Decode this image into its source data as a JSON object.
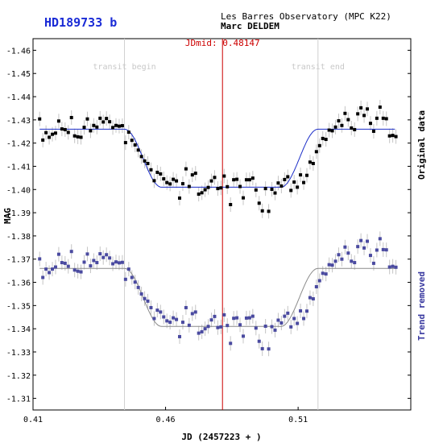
{
  "header": {
    "star_name": "HD189733 b",
    "observatory": "Les Barres Observatory (MPC K22)",
    "observer": "Marc DELDEM"
  },
  "colors": {
    "title": "#1a2bd6",
    "mid_line": "#cc0000",
    "marker_line": "#cfcfcf",
    "original_points": "#000000",
    "original_fit": "#1c2ec8",
    "detrended_points": "#4a4aa0",
    "detrended_fit": "#8a8a8a",
    "errorbar": "#c4c4c4",
    "right_label_bottom": "#3a3aa0"
  },
  "chart_data": {
    "type": "scatter",
    "xlabel": "JD (2457223 + )",
    "ylabel": "MAG",
    "xlim": [
      0.41,
      0.5525
    ],
    "ylim": [
      -1.465,
      -1.305
    ],
    "y_inverted": true,
    "grid": false,
    "x_ticks": [
      0.41,
      0.46,
      0.51
    ],
    "x_tick_labels": [
      "0.41",
      "0.46",
      "0.51"
    ],
    "y_ticks": [
      -1.46,
      -1.45,
      -1.44,
      -1.43,
      -1.42,
      -1.41,
      -1.4,
      -1.39,
      -1.38,
      -1.37,
      -1.36,
      -1.35,
      -1.34,
      -1.33,
      -1.32,
      -1.31
    ],
    "y_tick_labels": [
      "-1.46",
      "-1.45",
      "-1.44",
      "-1.43",
      "-1.42",
      "-1.41",
      "-1.40",
      "-1.39",
      "-1.38",
      "-1.37",
      "-1.36",
      "-1.35",
      "-1.34",
      "-1.33",
      "-1.32",
      "-1.31"
    ],
    "transit_begin": {
      "x": 0.4445,
      "label": "transit begin"
    },
    "transit_end": {
      "x": 0.5175,
      "label": "transit end"
    },
    "mid": {
      "x": 0.48147,
      "label": "JDmid: 0.48147"
    },
    "series": [
      {
        "name": "Original data",
        "baseline": -1.426,
        "depth": 0.025,
        "x": [
          0.4125,
          0.4137,
          0.4149,
          0.4161,
          0.4173,
          0.4185,
          0.4197,
          0.4209,
          0.4221,
          0.4233,
          0.4245,
          0.4257,
          0.4269,
          0.4281,
          0.4293,
          0.4305,
          0.4317,
          0.4329,
          0.4341,
          0.4353,
          0.4365,
          0.4377,
          0.4389,
          0.4401,
          0.4413,
          0.4425,
          0.4437,
          0.4449,
          0.4461,
          0.4473,
          0.4485,
          0.4497,
          0.4509,
          0.4521,
          0.4533,
          0.4545,
          0.4557,
          0.4569,
          0.4581,
          0.4593,
          0.4605,
          0.4617,
          0.4629,
          0.4641,
          0.4653,
          0.4665,
          0.4677,
          0.4689,
          0.4701,
          0.4713,
          0.4725,
          0.4737,
          0.4749,
          0.4761,
          0.4773,
          0.4785,
          0.4797,
          0.4809,
          0.4821,
          0.4833,
          0.4845,
          0.4857,
          0.4869,
          0.4881,
          0.4893,
          0.4905,
          0.4917,
          0.4929,
          0.4941,
          0.4953,
          0.4965,
          0.4977,
          0.4989,
          0.5001,
          0.5013,
          0.5025,
          0.5037,
          0.5049,
          0.5061,
          0.5073,
          0.5085,
          0.5097,
          0.5109,
          0.5121,
          0.5133,
          0.5145,
          0.5157,
          0.5169,
          0.5181,
          0.5193,
          0.5205,
          0.5217,
          0.5229,
          0.5241,
          0.5253,
          0.5265,
          0.5277,
          0.5289,
          0.5301,
          0.5313,
          0.5325,
          0.5337,
          0.5349,
          0.5361,
          0.5373,
          0.5385,
          0.5397,
          0.5409,
          0.5421,
          0.5433,
          0.5445,
          0.5457,
          0.5469
        ],
        "y": [
          -1.4304,
          -1.4213,
          -1.4245,
          -1.4225,
          -1.4238,
          -1.4243,
          -1.4295,
          -1.4261,
          -1.4258,
          -1.4246,
          -1.431,
          -1.4231,
          -1.4227,
          -1.4225,
          -1.4268,
          -1.4304,
          -1.4253,
          -1.4276,
          -1.4269,
          -1.4307,
          -1.4291,
          -1.4306,
          -1.4292,
          -1.4267,
          -1.4276,
          -1.4273,
          -1.4275,
          -1.4202,
          -1.4247,
          -1.4212,
          -1.4192,
          -1.417,
          -1.4142,
          -1.4123,
          -1.4112,
          -1.4085,
          -1.4038,
          -1.4074,
          -1.4067,
          -1.4046,
          -1.403,
          -1.4024,
          -1.4044,
          -1.4037,
          -1.3963,
          -1.4025,
          -1.4089,
          -1.4013,
          -1.4063,
          -1.407,
          -1.398,
          -1.3986,
          -1.3999,
          -1.4009,
          -1.4037,
          -1.4052,
          -1.4004,
          -1.4007,
          -1.4058,
          -1.4012,
          -1.3935,
          -1.4042,
          -1.4044,
          -1.4013,
          -1.3964,
          -1.4042,
          -1.4042,
          -1.4049,
          -1.3998,
          -1.3941,
          -1.3908,
          -1.4004,
          -1.3906,
          -1.4001,
          -1.3985,
          -1.4028,
          -1.4015,
          -1.4043,
          -1.4055,
          -1.3996,
          -1.4032,
          -1.401,
          -1.4063,
          -1.403,
          -1.4061,
          -1.4118,
          -1.4112,
          -1.4163,
          -1.4189,
          -1.422,
          -1.4216,
          -1.4256,
          -1.4253,
          -1.4269,
          -1.4296,
          -1.4276,
          -1.4328,
          -1.4301,
          -1.4265,
          -1.4258,
          -1.4326,
          -1.4352,
          -1.4319,
          -1.4347,
          -1.4285,
          -1.4251,
          -1.4307,
          -1.4355,
          -1.4307,
          -1.4305,
          -1.4231,
          -1.4233,
          -1.4228
        ]
      },
      {
        "name": "Trend removed",
        "baseline": -1.366,
        "depth": 0.025,
        "x": [
          0.4125,
          0.4137,
          0.4149,
          0.4161,
          0.4173,
          0.4185,
          0.4197,
          0.4209,
          0.4221,
          0.4233,
          0.4245,
          0.4257,
          0.4269,
          0.4281,
          0.4293,
          0.4305,
          0.4317,
          0.4329,
          0.4341,
          0.4353,
          0.4365,
          0.4377,
          0.4389,
          0.4401,
          0.4413,
          0.4425,
          0.4437,
          0.4449,
          0.4461,
          0.4473,
          0.4485,
          0.4497,
          0.4509,
          0.4521,
          0.4533,
          0.4545,
          0.4557,
          0.4569,
          0.4581,
          0.4593,
          0.4605,
          0.4617,
          0.4629,
          0.4641,
          0.4653,
          0.4665,
          0.4677,
          0.4689,
          0.4701,
          0.4713,
          0.4725,
          0.4737,
          0.4749,
          0.4761,
          0.4773,
          0.4785,
          0.4797,
          0.4809,
          0.4821,
          0.4833,
          0.4845,
          0.4857,
          0.4869,
          0.4881,
          0.4893,
          0.4905,
          0.4917,
          0.4929,
          0.4941,
          0.4953,
          0.4965,
          0.4977,
          0.4989,
          0.5001,
          0.5013,
          0.5025,
          0.5037,
          0.5049,
          0.5061,
          0.5073,
          0.5085,
          0.5097,
          0.5109,
          0.5121,
          0.5133,
          0.5145,
          0.5157,
          0.5169,
          0.5181,
          0.5193,
          0.5205,
          0.5217,
          0.5229,
          0.5241,
          0.5253,
          0.5265,
          0.5277,
          0.5289,
          0.5301,
          0.5313,
          0.5325,
          0.5337,
          0.5349,
          0.5361,
          0.5373,
          0.5385,
          0.5397,
          0.5409,
          0.5421,
          0.5433,
          0.5445,
          0.5457,
          0.5469
        ],
        "y": [
          -1.3701,
          -1.3621,
          -1.3657,
          -1.3642,
          -1.3657,
          -1.3666,
          -1.3721,
          -1.3685,
          -1.3682,
          -1.3669,
          -1.3733,
          -1.3653,
          -1.3648,
          -1.3645,
          -1.3687,
          -1.3722,
          -1.3671,
          -1.3694,
          -1.3685,
          -1.3723,
          -1.3707,
          -1.3719,
          -1.3705,
          -1.368,
          -1.3688,
          -1.3684,
          -1.3686,
          -1.3613,
          -1.3657,
          -1.3621,
          -1.3601,
          -1.3578,
          -1.355,
          -1.353,
          -1.3519,
          -1.3491,
          -1.3444,
          -1.348,
          -1.3472,
          -1.3451,
          -1.3434,
          -1.3428,
          -1.3447,
          -1.344,
          -1.3366,
          -1.3428,
          -1.3491,
          -1.3415,
          -1.3465,
          -1.3472,
          -1.3381,
          -1.3387,
          -1.34,
          -1.341,
          -1.3438,
          -1.3453,
          -1.3405,
          -1.3408,
          -1.346,
          -1.3414,
          -1.3337,
          -1.3445,
          -1.3447,
          -1.3417,
          -1.3368,
          -1.3446,
          -1.3447,
          -1.3454,
          -1.3403,
          -1.3346,
          -1.3314,
          -1.3411,
          -1.3313,
          -1.3409,
          -1.3394,
          -1.3437,
          -1.3425,
          -1.3454,
          -1.3467,
          -1.3408,
          -1.3444,
          -1.3423,
          -1.3477,
          -1.3444,
          -1.3476,
          -1.3534,
          -1.3529,
          -1.3581,
          -1.3607,
          -1.3639,
          -1.3636,
          -1.3676,
          -1.3674,
          -1.3691,
          -1.3719,
          -1.37,
          -1.3752,
          -1.3726,
          -1.3691,
          -1.3685,
          -1.3754,
          -1.378,
          -1.3748,
          -1.3777,
          -1.3716,
          -1.3682,
          -1.3739,
          -1.3788,
          -1.3741,
          -1.374,
          -1.3666,
          -1.3669,
          -1.3665
        ]
      }
    ]
  }
}
